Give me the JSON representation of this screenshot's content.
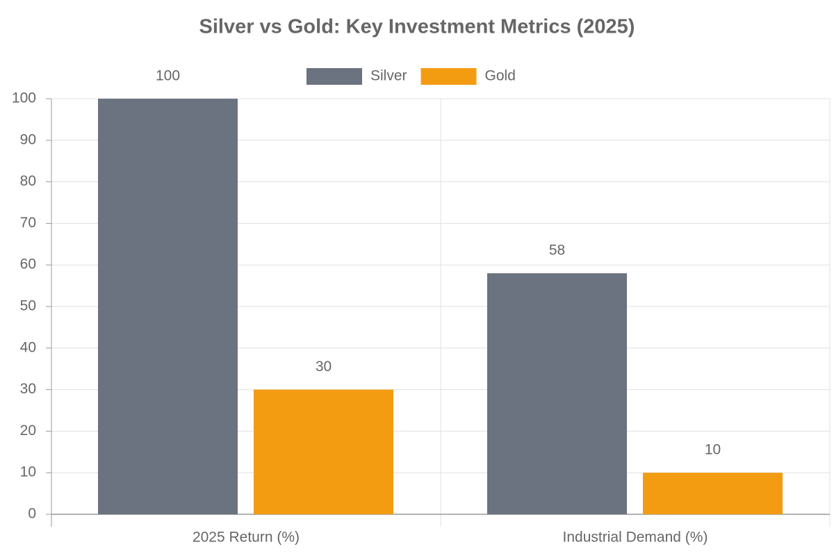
{
  "chart_data": {
    "type": "bar",
    "title": "Silver vs Gold: Key Investment Metrics (2025)",
    "categories": [
      "2025 Return (%)",
      "Industrial Demand (%)"
    ],
    "series": [
      {
        "name": "Silver",
        "color": "#6b7280",
        "values": [
          100,
          58
        ]
      },
      {
        "name": "Gold",
        "color": "#f39c12",
        "values": [
          30,
          10
        ]
      }
    ],
    "ylim": [
      0,
      100
    ],
    "yticks": [
      0,
      10,
      20,
      30,
      40,
      50,
      60,
      70,
      80,
      90,
      100
    ],
    "grid": true,
    "legend": "top"
  }
}
